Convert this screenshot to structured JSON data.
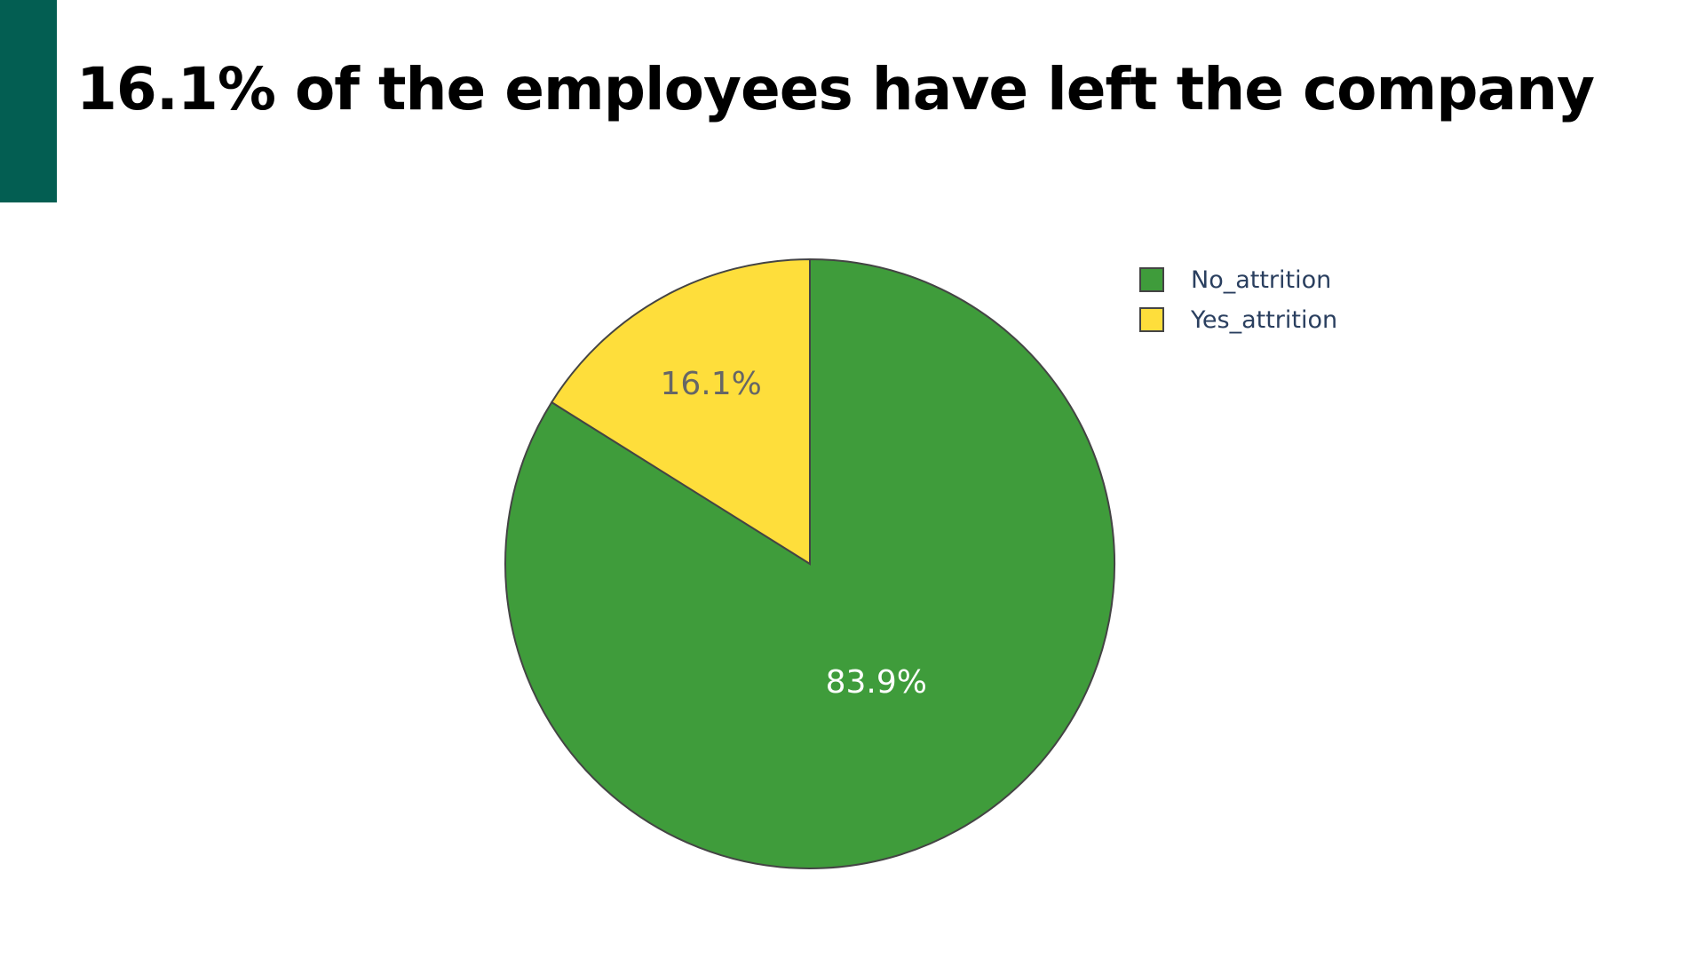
{
  "slide": {
    "title": "16.1% of the employees have left the company",
    "accent_color": "#035e52"
  },
  "chart_data": {
    "type": "pie",
    "title": "",
    "slices": [
      {
        "name": "No_attrition",
        "value": 83.9,
        "label": "83.9%",
        "color": "#3f9c3b",
        "label_color": "#ffffff"
      },
      {
        "name": "Yes_attrition",
        "value": 16.1,
        "label": "16.1%",
        "color": "#fede3b",
        "label_color": "#666666"
      }
    ],
    "start_angle": "12 o'clock",
    "direction": "counterclockwise",
    "legend_position": "top-right"
  }
}
